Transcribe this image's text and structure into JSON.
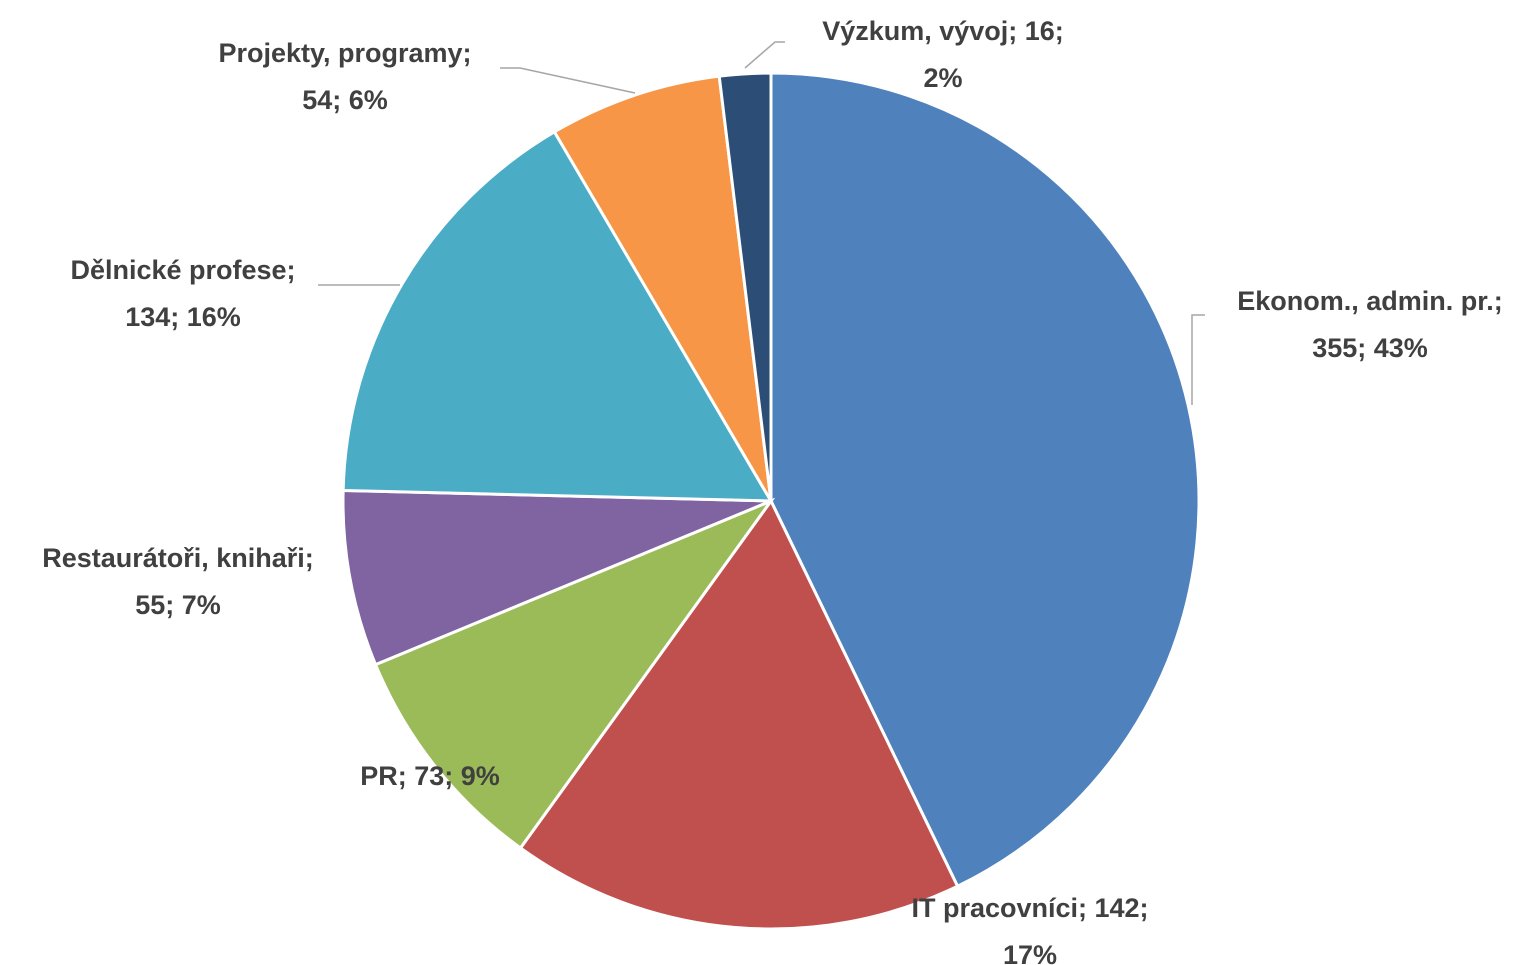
{
  "chart_data": {
    "type": "pie",
    "categories": [
      "Ekonom., admin. pr.",
      "IT pracovníci",
      "PR",
      "Restaurátoři, knihaři",
      "Dělnické profese",
      "Projekty, programy",
      "Výzkum, vývoj"
    ],
    "values": [
      355,
      142,
      73,
      55,
      134,
      54,
      16
    ],
    "percentages": [
      43,
      17,
      9,
      7,
      16,
      6,
      2
    ],
    "value_labels": [
      [
        "Ekonom., admin. pr.;",
        "355; 43%"
      ],
      [
        "IT pracovníci; 142;",
        "17%"
      ],
      [
        "PR; 73; 9%"
      ],
      [
        "Restaurátoři, knihaři;",
        "55; 7%"
      ],
      [
        "Dělnické profese;",
        "134; 16%"
      ],
      [
        "Projekty, programy;",
        "54; 6%"
      ],
      [
        "Výzkum, vývoj; 16;",
        "2%"
      ]
    ],
    "colors": [
      "#4f81bd",
      "#c0504d",
      "#9bbb59",
      "#8064a2",
      "#4bacc6",
      "#f79646",
      "#2c4d75"
    ]
  }
}
